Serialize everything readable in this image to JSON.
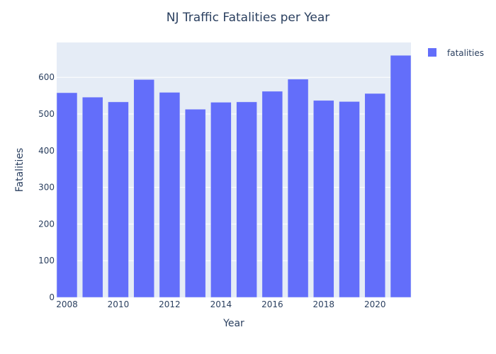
{
  "chart_data": {
    "type": "bar",
    "title": "NJ Traffic Fatalities per Year",
    "xlabel": "Year",
    "ylabel": "Fatalities",
    "x": [
      2008,
      2009,
      2010,
      2011,
      2012,
      2013,
      2014,
      2015,
      2016,
      2017,
      2018,
      2019,
      2020,
      2021
    ],
    "series": [
      {
        "name": "fatalities",
        "values": [
          558,
          546,
          533,
          594,
          559,
          513,
          532,
          533,
          562,
          595,
          537,
          534,
          556,
          660
        ]
      }
    ],
    "x_ticks": [
      "2008",
      "2010",
      "2012",
      "2014",
      "2016",
      "2018",
      "2020"
    ],
    "y_ticks": [
      "0",
      "100",
      "200",
      "300",
      "400",
      "500",
      "600"
    ],
    "ylim": [
      0,
      695
    ],
    "xlim": [
      2007.6,
      2021.4
    ],
    "grid": true,
    "legend_position": "top-right",
    "colors": {
      "bar": "#636efa",
      "plot_bg": "#e5ecf6",
      "grid": "#ffffff",
      "text": "#2a3f5f"
    }
  }
}
